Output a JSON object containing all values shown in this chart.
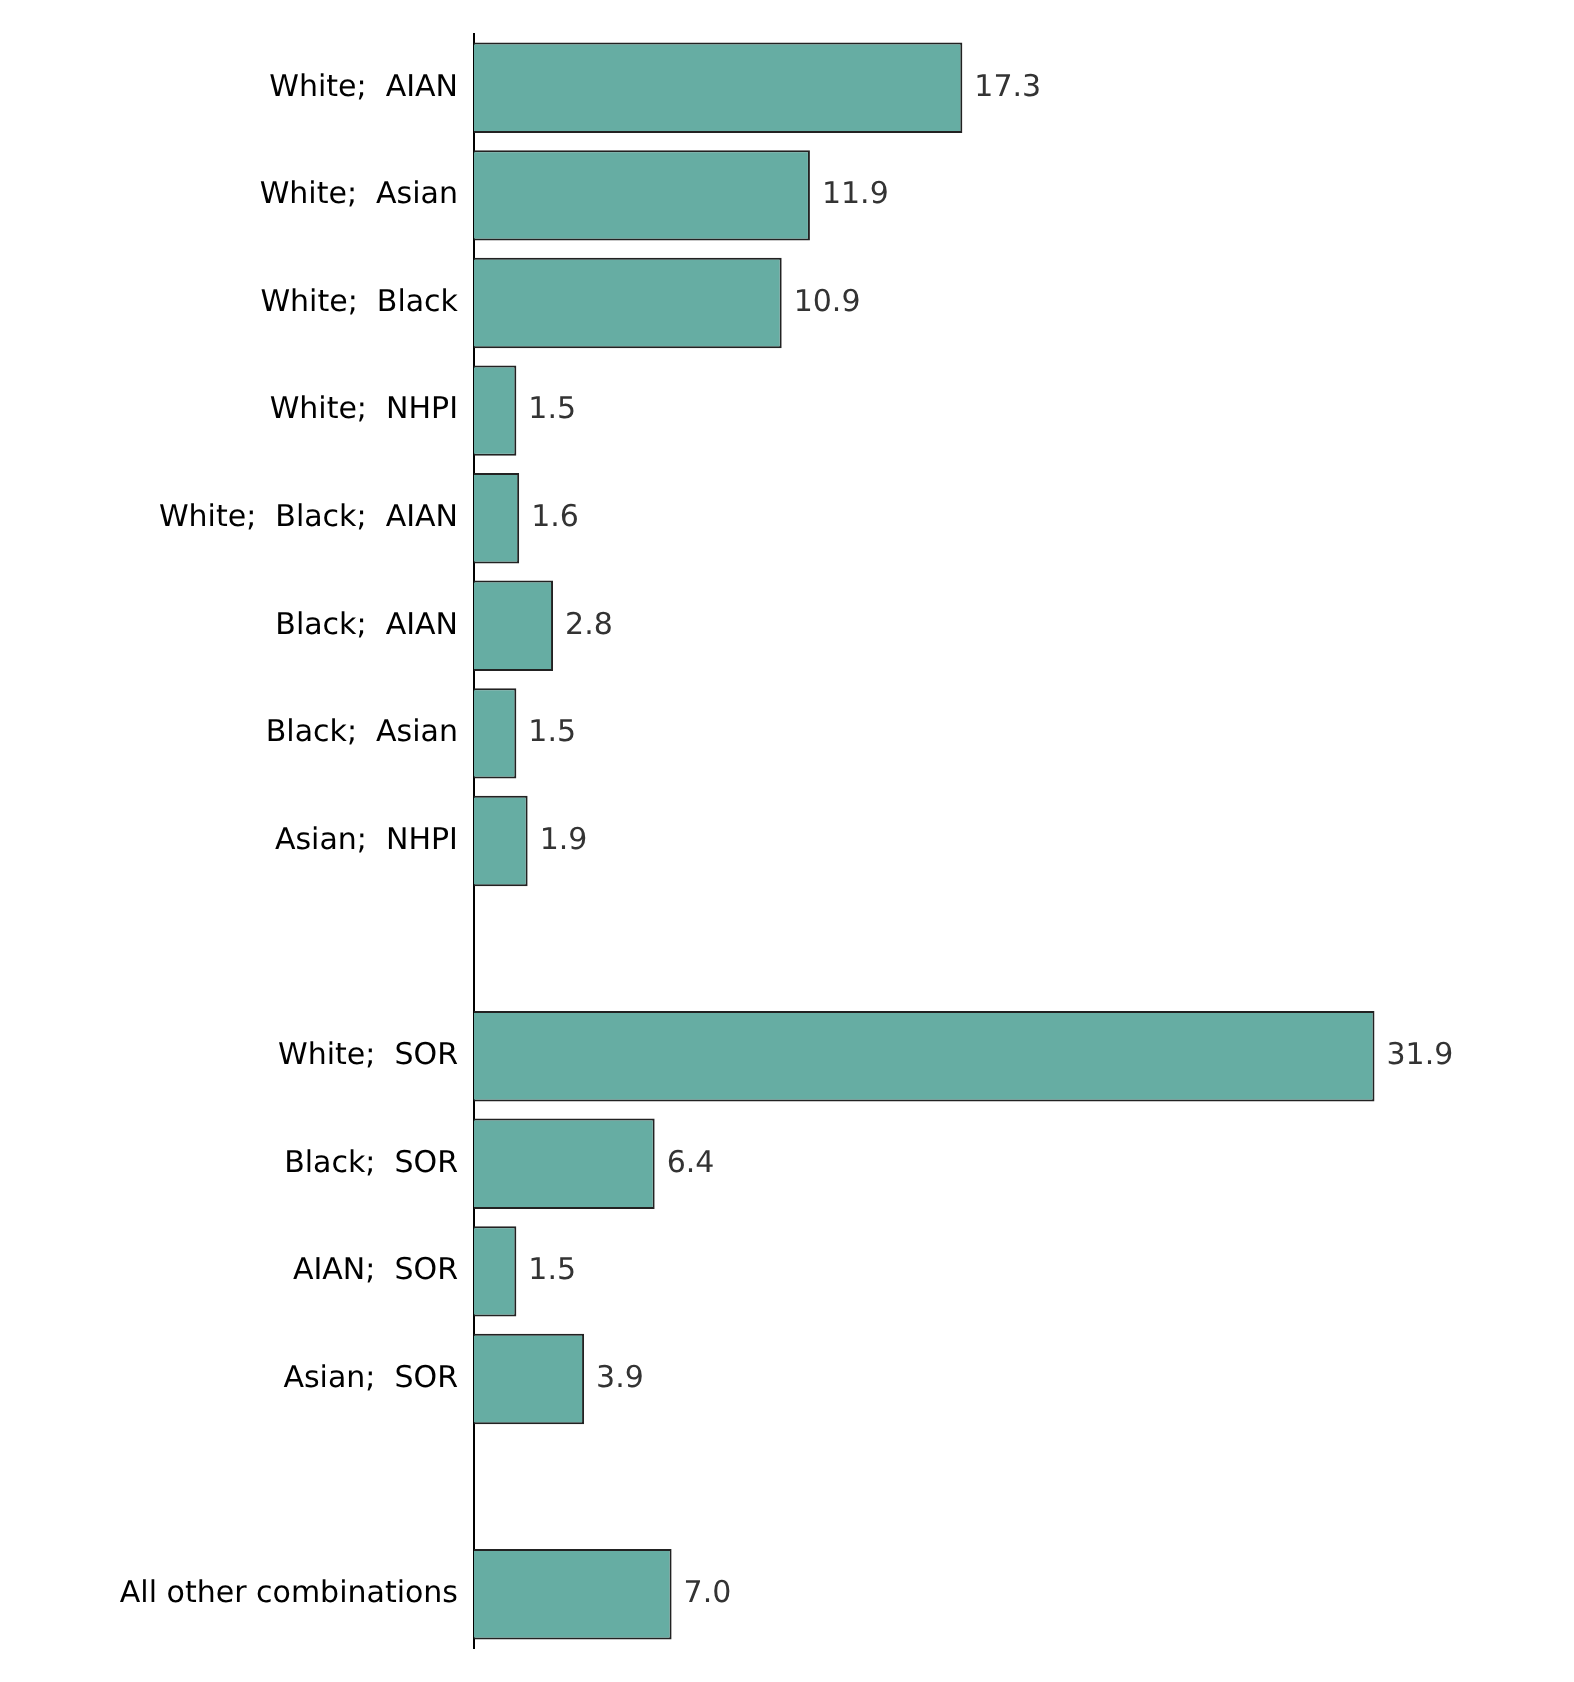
{
  "chart_data": {
    "type": "bar",
    "orientation": "horizontal",
    "categories": [
      "White;  AIAN",
      "White;  Asian",
      "White;  Black",
      "White;  NHPI",
      "White;  Black;  AIAN",
      "Black;  AIAN",
      "Black;  Asian",
      "Asian;  NHPI",
      null,
      "White;  SOR",
      "Black;  SOR",
      "AIAN;  SOR",
      "Asian;  SOR",
      null,
      "All other combinations"
    ],
    "values": [
      17.3,
      11.9,
      10.9,
      1.5,
      1.6,
      2.8,
      1.5,
      1.9,
      null,
      31.9,
      6.4,
      1.5,
      3.9,
      null,
      7.0
    ],
    "value_labels": [
      "17.3",
      "11.9",
      "10.9",
      "1.5",
      "1.6",
      "2.8",
      "1.5",
      "1.9",
      null,
      "31.9",
      "6.4",
      "1.5",
      "3.9",
      null,
      "7.0"
    ],
    "color": "#66ada3",
    "tick_labels": "y",
    "legend": false
  }
}
